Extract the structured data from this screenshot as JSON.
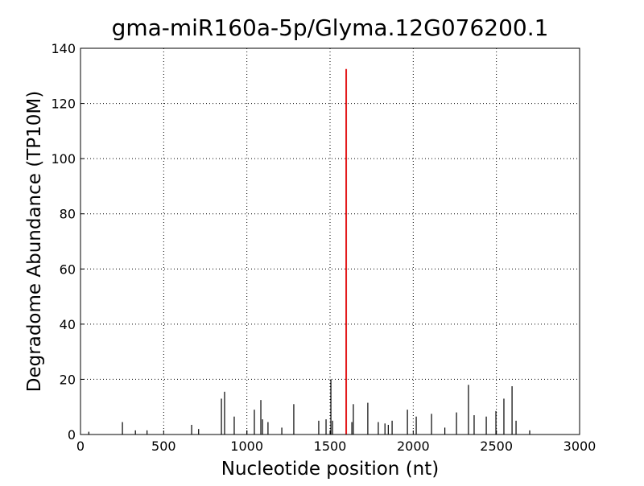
{
  "chart_data": {
    "type": "stem",
    "title": "gma-miR160a-5p/Glyma.12G076200.1",
    "x_label": "Nucleotide position (nt)",
    "y_label": "Degradome Abundance (TP10M)",
    "xlim": [
      0,
      3000
    ],
    "xticks": [
      0,
      500,
      1000,
      1500,
      2000,
      2500,
      3000
    ],
    "ylim": [
      0,
      140
    ],
    "yticks": [
      0,
      20,
      40,
      60,
      80,
      100,
      120,
      140
    ],
    "grid": true,
    "series": [
      {
        "color": "#000000",
        "x": [
          50,
          252,
          330,
          400,
          668,
          710,
          847,
          866,
          924,
          1000,
          1045,
          1084,
          1094,
          1127,
          1210,
          1282,
          1432,
          1476,
          1505,
          1515,
          1631,
          1640,
          1727,
          1790,
          1830,
          1850,
          1873,
          1965,
          2018,
          2110,
          2190,
          2260,
          2332,
          2366,
          2439,
          2497,
          2545,
          2594,
          2618,
          2700
        ],
        "values": [
          1,
          4.5,
          1.5,
          1.5,
          3.5,
          2,
          13,
          15.5,
          6.5,
          1.5,
          9,
          12.5,
          5.5,
          4.5,
          2.5,
          11,
          5,
          5.5,
          20,
          5,
          4.5,
          11,
          11.5,
          4.5,
          4,
          3.5,
          5,
          9,
          6.5,
          7.5,
          2.5,
          8,
          18,
          7,
          6.5,
          8.5,
          13,
          17.5,
          5,
          1.5
        ]
      },
      {
        "color": "#e31a1c",
        "x": [
          1597
        ],
        "values": [
          132.5
        ]
      }
    ]
  }
}
